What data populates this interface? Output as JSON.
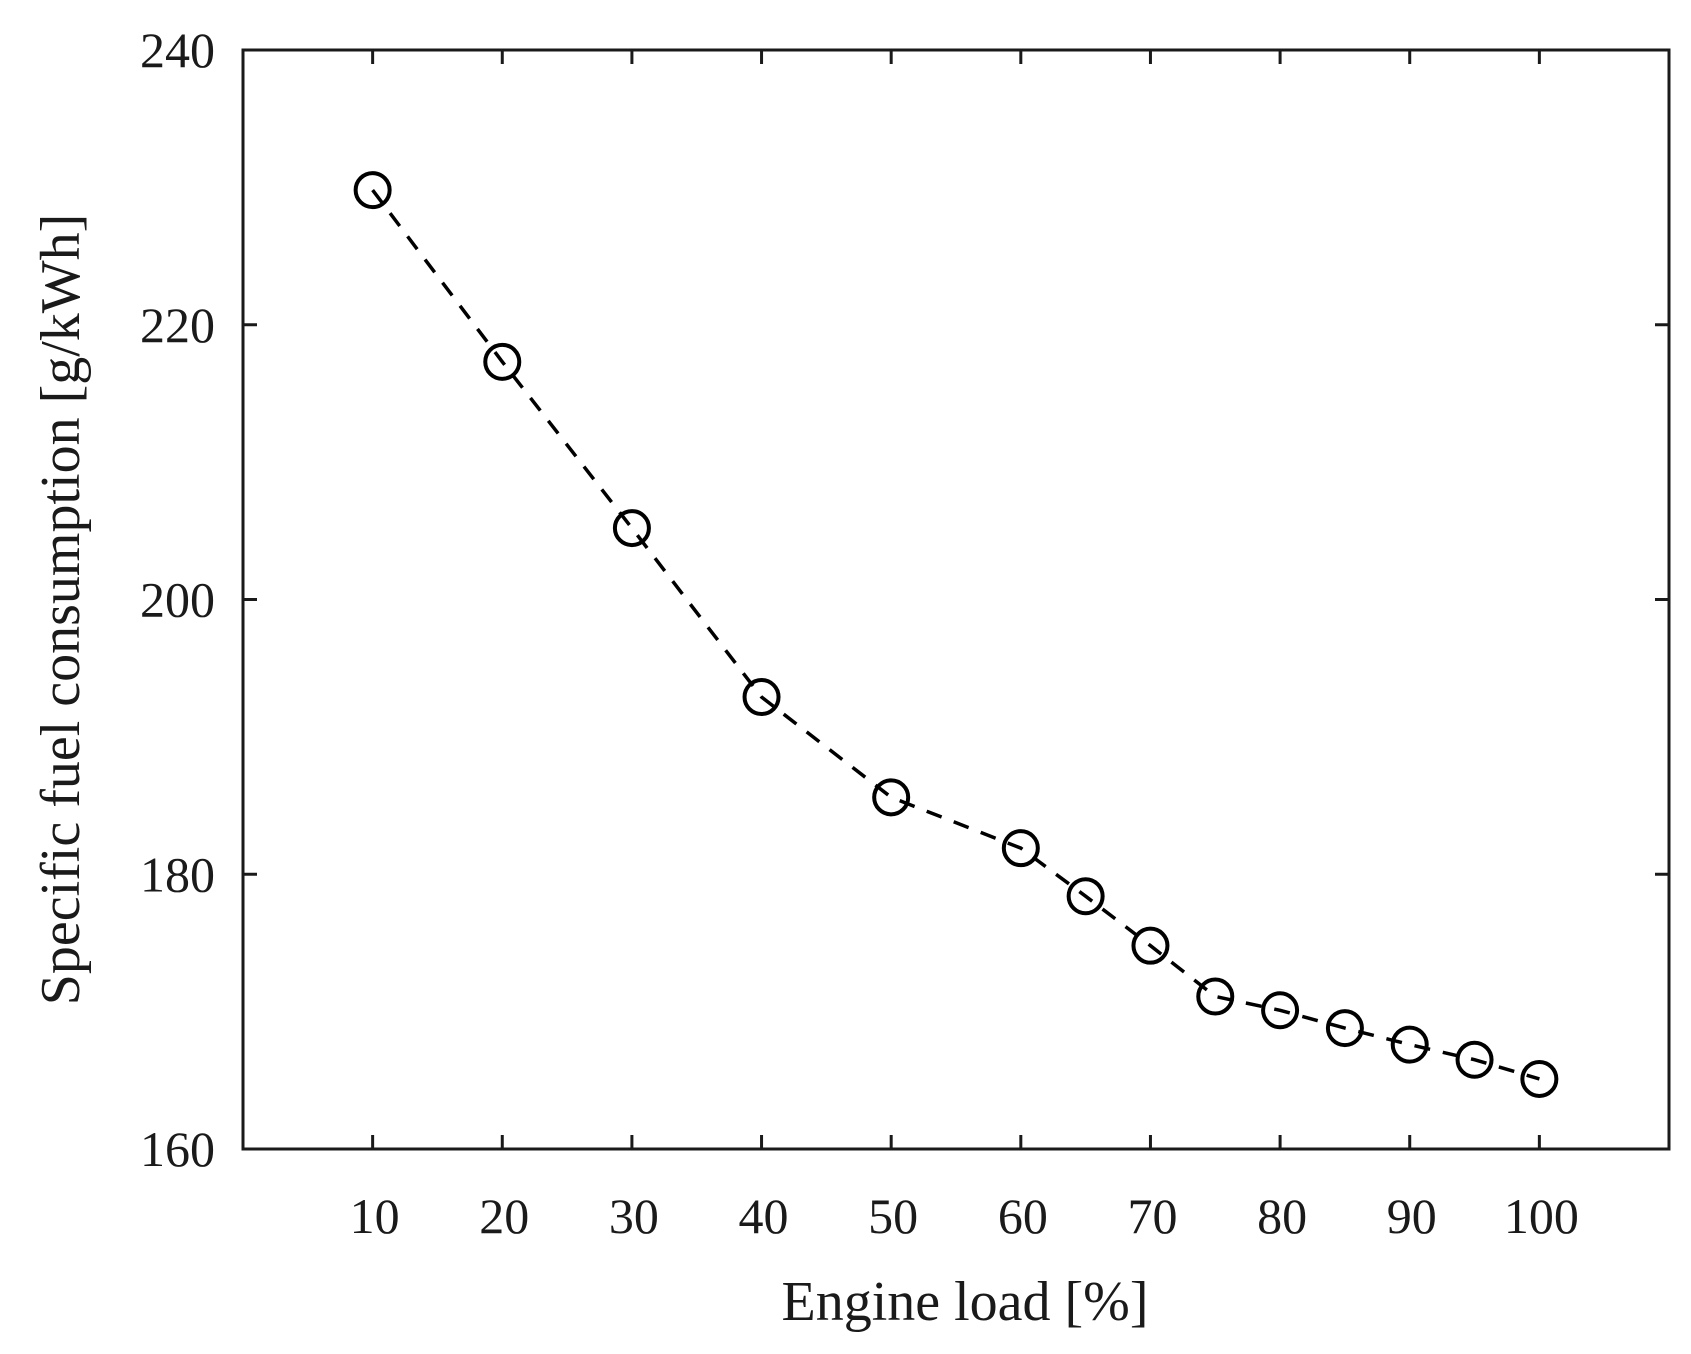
{
  "chart_data": {
    "type": "scatter",
    "title": "",
    "xlabel": "Engine load [%]",
    "ylabel": "Specific fuel consumption [g/kWh]",
    "xlim": [
      0,
      110
    ],
    "ylim": [
      160,
      240
    ],
    "xticks": [
      10,
      20,
      30,
      40,
      50,
      60,
      70,
      80,
      90,
      100
    ],
    "yticks": [
      160,
      180,
      200,
      220,
      240
    ],
    "grid": false,
    "legend": "none",
    "series": [
      {
        "marker": "open-circle",
        "line": "dashed",
        "color": "#000000",
        "x": [
          10,
          20,
          30,
          40,
          50,
          60,
          65,
          70,
          75,
          80,
          85,
          90,
          95,
          100
        ],
        "y": [
          229.8,
          217.3,
          205.2,
          192.9,
          185.6,
          181.9,
          178.4,
          174.8,
          171.1,
          170.1,
          168.8,
          167.6,
          166.5,
          165.1
        ]
      }
    ]
  }
}
